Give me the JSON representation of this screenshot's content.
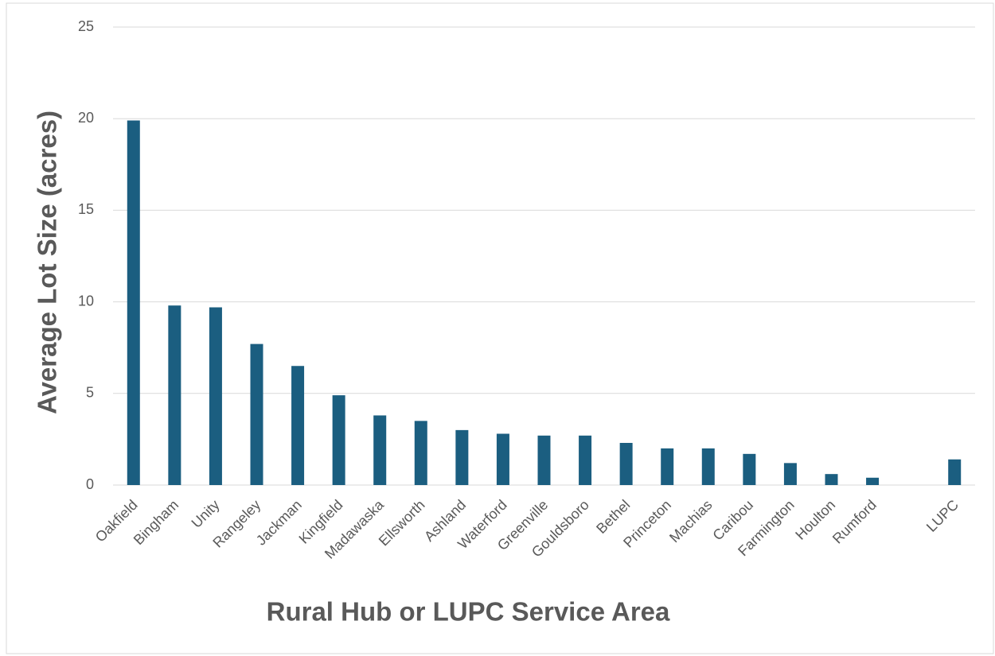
{
  "chart_data": {
    "type": "bar",
    "y_label": "Average Lot Size (acres)",
    "x_label": "Rural Hub or LUPC Service Area",
    "categories": [
      "Oakfield",
      "Bingham",
      "Unity",
      "Rangeley",
      "Jackman",
      "Kingfield",
      "Madawaska",
      "Ellsworth",
      "Ashland",
      "Waterford",
      "Greenville",
      "Gouldsboro",
      "Bethel",
      "Princeton",
      "Machias",
      "Caribou",
      "Farmington",
      "Houlton",
      "Rumford",
      null,
      "LUPC"
    ],
    "values": [
      19.9,
      9.8,
      9.7,
      7.7,
      6.5,
      4.9,
      3.8,
      3.5,
      3.0,
      2.8,
      2.7,
      2.7,
      2.3,
      2.0,
      2.0,
      1.7,
      1.2,
      0.6,
      0.4,
      null,
      1.4
    ],
    "color": "#1b5e80",
    "ylim": [
      0,
      25
    ],
    "yticks": [
      0,
      5,
      10,
      15,
      20,
      25
    ],
    "grid": true
  }
}
